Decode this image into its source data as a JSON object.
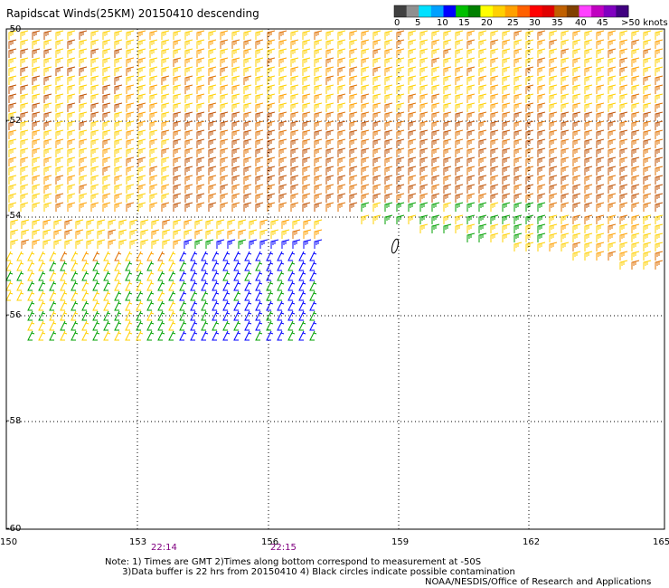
{
  "title": "Rapidscat Winds(25KM) 20150410 descending",
  "colorbar": {
    "labels": [
      "0",
      "5",
      "10",
      "15",
      "20",
      "25",
      "30",
      "35",
      "40",
      "45",
      ">50 knots"
    ],
    "colors": [
      "#404040",
      "#909090",
      "#00e0ff",
      "#00a0ff",
      "#0000ff",
      "#00c000",
      "#008000",
      "#ffff00",
      "#ffd000",
      "#ffa000",
      "#ff6000",
      "#ff0000",
      "#e00000",
      "#c06000",
      "#804000",
      "#ff40ff",
      "#c000c0",
      "#8000c0",
      "#400080"
    ]
  },
  "map": {
    "lat_labels": [
      "-50",
      "-52",
      "-54",
      "-56",
      "-58",
      "-60"
    ],
    "lon_labels": [
      "150",
      "153",
      "156",
      "159",
      "162",
      "165"
    ],
    "times": [
      "22:14",
      "22:15"
    ]
  },
  "notes": "Note: 1) Times are GMT 2)Times along bottom correspond to measurement at -50S\n      3)Data buffer is 22 hrs from 20150410 4) Black circles indicate possible contamination",
  "credit": "NOAA/NESDIS/Office of Research and Applications"
}
